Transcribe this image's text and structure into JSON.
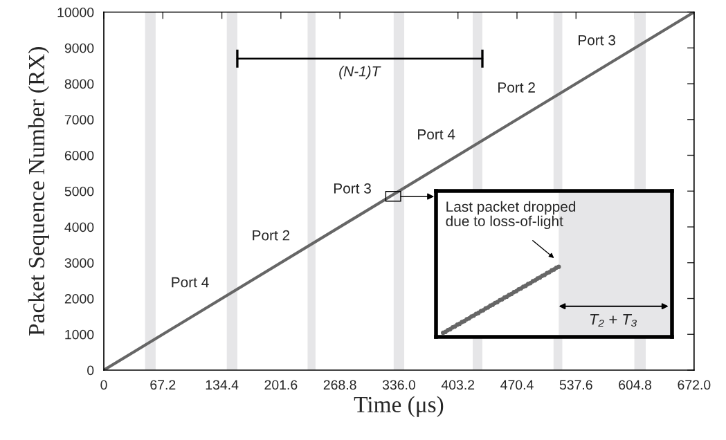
{
  "chart_data": {
    "type": "line",
    "xlabel": "Time (μs)",
    "ylabel": "Packet Sequence Number (RX)",
    "x": [
      0,
      672
    ],
    "series": [
      {
        "color": "#666666",
        "values": [
          0,
          10000
        ]
      },
      {
        "color": "#000000",
        "x": [
          152,
          431
        ],
        "values": [
          8700,
          8700
        ]
      }
    ],
    "xlim": [
      0,
      672
    ],
    "xticks": [
      0,
      67.2,
      134.4,
      201.6,
      268.8,
      {
        "value": 336,
        "label": "336.0"
      },
      403.2,
      470.4,
      537.6,
      604.8,
      {
        "value": 672,
        "label": "672.0"
      }
    ],
    "ylim": [
      0,
      10000
    ],
    "yticks": [
      0,
      1000,
      2000,
      3000,
      4000,
      5000,
      6000,
      7000,
      8000,
      9000,
      10000
    ],
    "grid": false,
    "legend": false,
    "marker": "none",
    "line_style": "solid",
    "bands": [
      {
        "axis": "x",
        "from": 47,
        "to": 59,
        "color": "#e6e6e8"
      },
      {
        "axis": "x",
        "from": 140,
        "to": 152,
        "color": "#e6e6e8"
      },
      {
        "axis": "x",
        "from": 232,
        "to": 241,
        "color": "#e6e6e8"
      },
      {
        "axis": "x",
        "from": 330,
        "to": 342,
        "color": "#e6e6e8"
      },
      {
        "axis": "x",
        "from": 420,
        "to": 431,
        "color": "#e6e6e8"
      },
      {
        "axis": "x",
        "from": 512,
        "to": 522,
        "color": "#e6e6e8"
      },
      {
        "axis": "x",
        "from": 604,
        "to": 617,
        "color": "#e6e6e8"
      }
    ],
    "annotations": [
      "Port 4",
      "Port 2",
      "Port 3",
      "Port 4",
      "Port 2",
      "Port 3",
      "(N-1)T",
      "Last packet dropped\ndue to loss-of-light",
      "T₂ + T₃"
    ]
  }
}
